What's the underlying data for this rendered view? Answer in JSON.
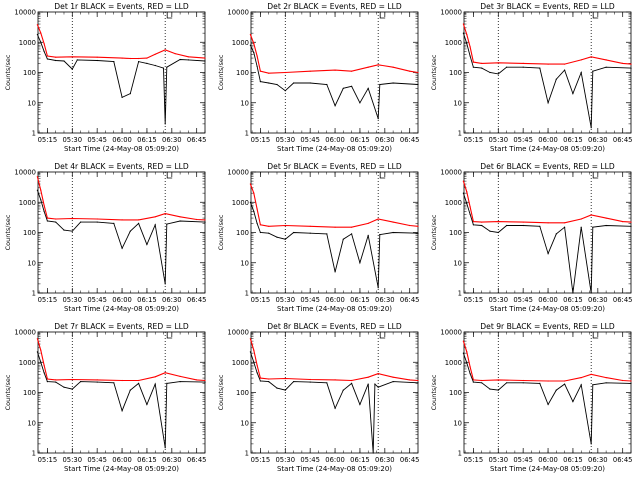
{
  "colors": {
    "events": "#000000",
    "lld": "#ff0000",
    "axes": "#000000",
    "background": "#ffffff"
  },
  "chart_data": [
    {
      "type": "line",
      "title": "Det 1r BLACK = Events, RED = LLD",
      "xlabel": "Start Time (24-May-08 05:09:20)",
      "ylabel": "Counts/sec",
      "x_ticks": [
        "05:15",
        "05:30",
        "05:45",
        "06:00",
        "06:15",
        "06:30",
        "06:45"
      ],
      "y_ticks": [
        "1",
        "10",
        "100",
        "1000",
        "10000"
      ],
      "y_scale": "log",
      "ylim": [
        1,
        10000
      ],
      "xlim": [
        "05:09:20",
        "06:50:00"
      ],
      "vlines": [
        "05:30",
        "06:26"
      ],
      "grid": false,
      "series": [
        {
          "name": "LLD",
          "color": "#ff0000",
          "x": [
            "05:09",
            "05:11",
            "05:13",
            "05:15",
            "05:20",
            "05:30",
            "05:45",
            "06:00",
            "06:05",
            "06:10",
            "06:15",
            "06:20",
            "06:26",
            "06:32",
            "06:40",
            "06:50"
          ],
          "y": [
            3800,
            2000,
            900,
            350,
            320,
            330,
            320,
            300,
            290,
            290,
            300,
            400,
            560,
            420,
            330,
            300
          ]
        },
        {
          "name": "Events",
          "color": "#000000",
          "x": [
            "05:09",
            "05:11",
            "05:13",
            "05:15",
            "05:20",
            "05:25",
            "05:30",
            "05:33",
            "05:45",
            "05:55",
            "06:00",
            "06:05",
            "06:10",
            "06:15",
            "06:20",
            "06:25",
            "06:26",
            "06:27",
            "06:35",
            "06:40",
            "06:50"
          ],
          "y": [
            1800,
            1000,
            500,
            280,
            250,
            240,
            130,
            260,
            250,
            230,
            15,
            20,
            230,
            200,
            170,
            140,
            2,
            150,
            270,
            260,
            240
          ]
        }
      ]
    },
    {
      "type": "line",
      "title": "Det 2r BLACK = Events, RED = LLD",
      "xlabel": "Start Time (24-May-08 05:09:20)",
      "ylabel": "Counts/sec",
      "x_ticks": [
        "05:15",
        "05:30",
        "05:45",
        "06:00",
        "06:15",
        "06:30",
        "06:45"
      ],
      "y_ticks": [
        "1",
        "10",
        "100",
        "1000",
        "10000"
      ],
      "y_scale": "log",
      "ylim": [
        1,
        10000
      ],
      "xlim": [
        "05:09:20",
        "06:50:00"
      ],
      "vlines": [
        "05:30",
        "06:26"
      ],
      "grid": false,
      "series": [
        {
          "name": "LLD",
          "color": "#ff0000",
          "x": [
            "05:09",
            "05:11",
            "05:13",
            "05:15",
            "05:20",
            "05:30",
            "05:45",
            "06:00",
            "06:10",
            "06:20",
            "06:26",
            "06:35",
            "06:45",
            "06:50"
          ],
          "y": [
            1800,
            900,
            350,
            110,
            95,
            100,
            110,
            120,
            110,
            150,
            180,
            150,
            110,
            100
          ]
        },
        {
          "name": "Events",
          "color": "#000000",
          "x": [
            "05:09",
            "05:11",
            "05:13",
            "05:15",
            "05:20",
            "05:25",
            "05:30",
            "05:35",
            "05:45",
            "05:55",
            "06:00",
            "06:05",
            "06:10",
            "06:15",
            "06:20",
            "06:26",
            "06:27",
            "06:35",
            "06:50"
          ],
          "y": [
            800,
            450,
            160,
            50,
            45,
            40,
            25,
            45,
            45,
            40,
            8,
            30,
            35,
            10,
            30,
            3,
            40,
            45,
            40
          ]
        }
      ]
    },
    {
      "type": "line",
      "title": "Det 3r BLACK = Events, RED = LLD",
      "xlabel": "Start Time (24-May-08 05:09:20)",
      "ylabel": "Counts/sec",
      "x_ticks": [
        "05:15",
        "05:30",
        "05:45",
        "06:00",
        "06:15",
        "06:30",
        "06:45"
      ],
      "y_ticks": [
        "1",
        "10",
        "100",
        "1000",
        "10000"
      ],
      "y_scale": "log",
      "ylim": [
        1,
        10000
      ],
      "xlim": [
        "05:09:20",
        "06:50:00"
      ],
      "vlines": [
        "05:30",
        "06:26"
      ],
      "grid": false,
      "series": [
        {
          "name": "LLD",
          "color": "#ff0000",
          "x": [
            "05:09",
            "05:11",
            "05:13",
            "05:15",
            "05:20",
            "05:30",
            "05:45",
            "06:00",
            "06:10",
            "06:20",
            "06:26",
            "06:35",
            "06:45",
            "06:50"
          ],
          "y": [
            4000,
            1800,
            700,
            220,
            200,
            210,
            200,
            190,
            190,
            260,
            330,
            260,
            200,
            190
          ]
        },
        {
          "name": "Events",
          "color": "#000000",
          "x": [
            "05:09",
            "05:11",
            "05:13",
            "05:15",
            "05:20",
            "05:25",
            "05:30",
            "05:35",
            "05:45",
            "05:55",
            "06:00",
            "06:05",
            "06:10",
            "06:15",
            "06:20",
            "06:26",
            "06:27",
            "06:35",
            "06:50"
          ],
          "y": [
            2000,
            900,
            350,
            150,
            140,
            100,
            90,
            150,
            150,
            140,
            10,
            60,
            120,
            20,
            100,
            1.5,
            110,
            150,
            140
          ]
        }
      ]
    },
    {
      "type": "line",
      "title": "Det 4r BLACK = Events, RED = LLD",
      "xlabel": "Start Time (24-May-08 05:09:20)",
      "ylabel": "Counts/sec",
      "x_ticks": [
        "05:15",
        "05:30",
        "05:45",
        "06:00",
        "06:15",
        "06:30",
        "06:45"
      ],
      "y_ticks": [
        "1",
        "10",
        "100",
        "1000",
        "10000"
      ],
      "y_scale": "log",
      "ylim": [
        1,
        10000
      ],
      "xlim": [
        "05:09:20",
        "06:50:00"
      ],
      "vlines": [
        "05:30",
        "06:26"
      ],
      "grid": false,
      "series": [
        {
          "name": "LLD",
          "color": "#ff0000",
          "x": [
            "05:09",
            "05:11",
            "05:13",
            "05:15",
            "05:20",
            "05:30",
            "05:45",
            "06:00",
            "06:10",
            "06:20",
            "06:26",
            "06:35",
            "06:45",
            "06:50"
          ],
          "y": [
            7000,
            2500,
            800,
            300,
            280,
            290,
            280,
            260,
            260,
            330,
            420,
            330,
            270,
            260
          ]
        },
        {
          "name": "Events",
          "color": "#000000",
          "x": [
            "05:09",
            "05:11",
            "05:13",
            "05:15",
            "05:20",
            "05:25",
            "05:30",
            "05:35",
            "05:45",
            "05:55",
            "06:00",
            "06:05",
            "06:10",
            "06:15",
            "06:20",
            "06:26",
            "06:27",
            "06:35",
            "06:50"
          ],
          "y": [
            2500,
            1200,
            500,
            240,
            220,
            120,
            110,
            220,
            220,
            200,
            30,
            110,
            200,
            40,
            180,
            2,
            190,
            240,
            220
          ]
        }
      ]
    },
    {
      "type": "line",
      "title": "Det 5r BLACK = Events, RED = LLD",
      "xlabel": "Start Time (24-May-08 05:09:20)",
      "ylabel": "Counts/sec",
      "x_ticks": [
        "05:15",
        "05:30",
        "05:45",
        "06:00",
        "06:15",
        "06:30",
        "06:45"
      ],
      "y_ticks": [
        "1",
        "10",
        "100",
        "1000",
        "10000"
      ],
      "y_scale": "log",
      "ylim": [
        1,
        10000
      ],
      "xlim": [
        "05:09:20",
        "06:50:00"
      ],
      "vlines": [
        "05:30",
        "06:26"
      ],
      "grid": false,
      "series": [
        {
          "name": "LLD",
          "color": "#ff0000",
          "x": [
            "05:09",
            "05:11",
            "05:13",
            "05:15",
            "05:20",
            "05:30",
            "05:45",
            "06:00",
            "06:10",
            "06:20",
            "06:26",
            "06:35",
            "06:45",
            "06:50"
          ],
          "y": [
            4000,
            2000,
            600,
            180,
            160,
            170,
            160,
            150,
            150,
            200,
            280,
            220,
            170,
            160
          ]
        },
        {
          "name": "Events",
          "color": "#000000",
          "x": [
            "05:09",
            "05:11",
            "05:13",
            "05:15",
            "05:20",
            "05:25",
            "05:30",
            "05:35",
            "05:45",
            "05:55",
            "06:00",
            "06:05",
            "06:10",
            "06:15",
            "06:20",
            "06:26",
            "06:27",
            "06:35",
            "06:50"
          ],
          "y": [
            1000,
            500,
            200,
            100,
            95,
            70,
            60,
            100,
            95,
            90,
            5,
            60,
            90,
            10,
            80,
            1.5,
            85,
            100,
            95
          ]
        }
      ]
    },
    {
      "type": "line",
      "title": "Det 6r BLACK = Events, RED = LLD",
      "xlabel": "Start Time (24-May-08 05:09:20)",
      "ylabel": "Counts/sec",
      "x_ticks": [
        "05:15",
        "05:30",
        "05:45",
        "06:00",
        "06:15",
        "06:30",
        "06:45"
      ],
      "y_ticks": [
        "1",
        "10",
        "100",
        "1000",
        "10000"
      ],
      "y_scale": "log",
      "ylim": [
        1,
        10000
      ],
      "xlim": [
        "05:09:20",
        "06:50:00"
      ],
      "vlines": [
        "05:30",
        "06:26"
      ],
      "grid": false,
      "series": [
        {
          "name": "LLD",
          "color": "#ff0000",
          "x": [
            "05:09",
            "05:11",
            "05:13",
            "05:15",
            "05:20",
            "05:30",
            "05:45",
            "06:00",
            "06:10",
            "06:20",
            "06:26",
            "06:35",
            "06:45",
            "06:50"
          ],
          "y": [
            5000,
            2200,
            700,
            230,
            220,
            230,
            220,
            210,
            210,
            280,
            380,
            300,
            230,
            220
          ]
        },
        {
          "name": "Events",
          "color": "#000000",
          "x": [
            "05:09",
            "05:11",
            "05:13",
            "05:15",
            "05:20",
            "05:25",
            "05:30",
            "05:35",
            "05:45",
            "05:55",
            "06:00",
            "06:05",
            "06:10",
            "06:15",
            "06:20",
            "06:26",
            "06:27",
            "06:35",
            "06:50"
          ],
          "y": [
            2000,
            900,
            400,
            180,
            170,
            110,
            100,
            170,
            170,
            160,
            20,
            90,
            150,
            1,
            150,
            1,
            150,
            170,
            160
          ]
        }
      ]
    },
    {
      "type": "line",
      "title": "Det 7r BLACK = Events, RED = LLD",
      "xlabel": "Start Time (24-May-08 05:09:20)",
      "ylabel": "Counts/sec",
      "x_ticks": [
        "05:15",
        "05:30",
        "05:45",
        "06:00",
        "06:15",
        "06:30",
        "06:45"
      ],
      "y_ticks": [
        "1",
        "10",
        "100",
        "1000",
        "10000"
      ],
      "y_scale": "log",
      "ylim": [
        1,
        10000
      ],
      "xlim": [
        "05:09:20",
        "06:50:00"
      ],
      "vlines": [
        "05:30",
        "06:26"
      ],
      "grid": false,
      "series": [
        {
          "name": "LLD",
          "color": "#ff0000",
          "x": [
            "05:09",
            "05:11",
            "05:13",
            "05:15",
            "05:20",
            "05:30",
            "05:45",
            "06:00",
            "06:10",
            "06:20",
            "06:26",
            "06:35",
            "06:45",
            "06:50"
          ],
          "y": [
            6000,
            2500,
            800,
            280,
            260,
            270,
            260,
            250,
            250,
            330,
            450,
            340,
            260,
            250
          ]
        },
        {
          "name": "Events",
          "color": "#000000",
          "x": [
            "05:09",
            "05:11",
            "05:13",
            "05:15",
            "05:20",
            "05:25",
            "05:30",
            "05:35",
            "05:45",
            "05:55",
            "06:00",
            "06:05",
            "06:10",
            "06:15",
            "06:20",
            "06:26",
            "06:27",
            "06:35",
            "06:50"
          ],
          "y": [
            2200,
            1000,
            450,
            230,
            220,
            150,
            130,
            230,
            220,
            210,
            25,
            120,
            200,
            40,
            190,
            1.5,
            200,
            230,
            220
          ]
        }
      ]
    },
    {
      "type": "line",
      "title": "Det 8r BLACK = Events, RED = LLD",
      "xlabel": "Start Time (24-May-08 05:09:20)",
      "ylabel": "Counts/sec",
      "x_ticks": [
        "05:15",
        "05:30",
        "05:45",
        "06:00",
        "06:15",
        "06:30",
        "06:45"
      ],
      "y_ticks": [
        "1",
        "10",
        "100",
        "1000",
        "10000"
      ],
      "y_scale": "log",
      "ylim": [
        1,
        10000
      ],
      "xlim": [
        "05:09:20",
        "06:50:00"
      ],
      "vlines": [
        "05:30",
        "06:26"
      ],
      "grid": false,
      "series": [
        {
          "name": "LLD",
          "color": "#ff0000",
          "x": [
            "05:09",
            "05:11",
            "05:13",
            "05:15",
            "05:20",
            "05:30",
            "05:45",
            "06:00",
            "06:10",
            "06:20",
            "06:26",
            "06:35",
            "06:45",
            "06:50"
          ],
          "y": [
            6000,
            2500,
            800,
            300,
            280,
            290,
            270,
            260,
            250,
            320,
            420,
            320,
            260,
            250
          ]
        },
        {
          "name": "Events",
          "color": "#000000",
          "x": [
            "05:09",
            "05:11",
            "05:13",
            "05:15",
            "05:20",
            "05:25",
            "05:30",
            "05:35",
            "05:45",
            "05:55",
            "06:00",
            "06:05",
            "06:10",
            "06:15",
            "06:20",
            "06:23",
            "06:24",
            "06:26",
            "06:35",
            "06:50"
          ],
          "y": [
            2200,
            1000,
            450,
            240,
            230,
            140,
            120,
            230,
            220,
            210,
            30,
            120,
            200,
            40,
            190,
            1,
            190,
            150,
            230,
            210
          ]
        }
      ]
    },
    {
      "type": "line",
      "title": "Det 9r BLACK = Events, RED = LLD",
      "xlabel": "Start Time (24-May-08 05:09:20)",
      "ylabel": "Counts/sec",
      "x_ticks": [
        "05:15",
        "05:30",
        "05:45",
        "06:00",
        "06:15",
        "06:30",
        "06:45"
      ],
      "y_ticks": [
        "1",
        "10",
        "100",
        "1000",
        "10000"
      ],
      "y_scale": "log",
      "ylim": [
        1,
        10000
      ],
      "xlim": [
        "05:09:20",
        "06:50:00"
      ],
      "vlines": [
        "05:30",
        "06:26"
      ],
      "grid": false,
      "series": [
        {
          "name": "LLD",
          "color": "#ff0000",
          "x": [
            "05:09",
            "05:11",
            "05:13",
            "05:15",
            "05:20",
            "05:30",
            "05:45",
            "06:00",
            "06:10",
            "06:20",
            "06:26",
            "06:35",
            "06:45",
            "06:50"
          ],
          "y": [
            5000,
            2200,
            700,
            260,
            250,
            260,
            250,
            240,
            240,
            310,
            400,
            310,
            250,
            240
          ]
        },
        {
          "name": "Events",
          "color": "#000000",
          "x": [
            "05:09",
            "05:11",
            "05:13",
            "05:15",
            "05:20",
            "05:25",
            "05:30",
            "05:35",
            "05:45",
            "05:55",
            "06:00",
            "06:05",
            "06:10",
            "06:15",
            "06:20",
            "06:26",
            "06:27",
            "06:35",
            "06:50"
          ],
          "y": [
            2000,
            950,
            420,
            220,
            210,
            130,
            120,
            210,
            210,
            200,
            40,
            120,
            190,
            50,
            180,
            2,
            180,
            210,
            200
          ]
        }
      ]
    }
  ]
}
